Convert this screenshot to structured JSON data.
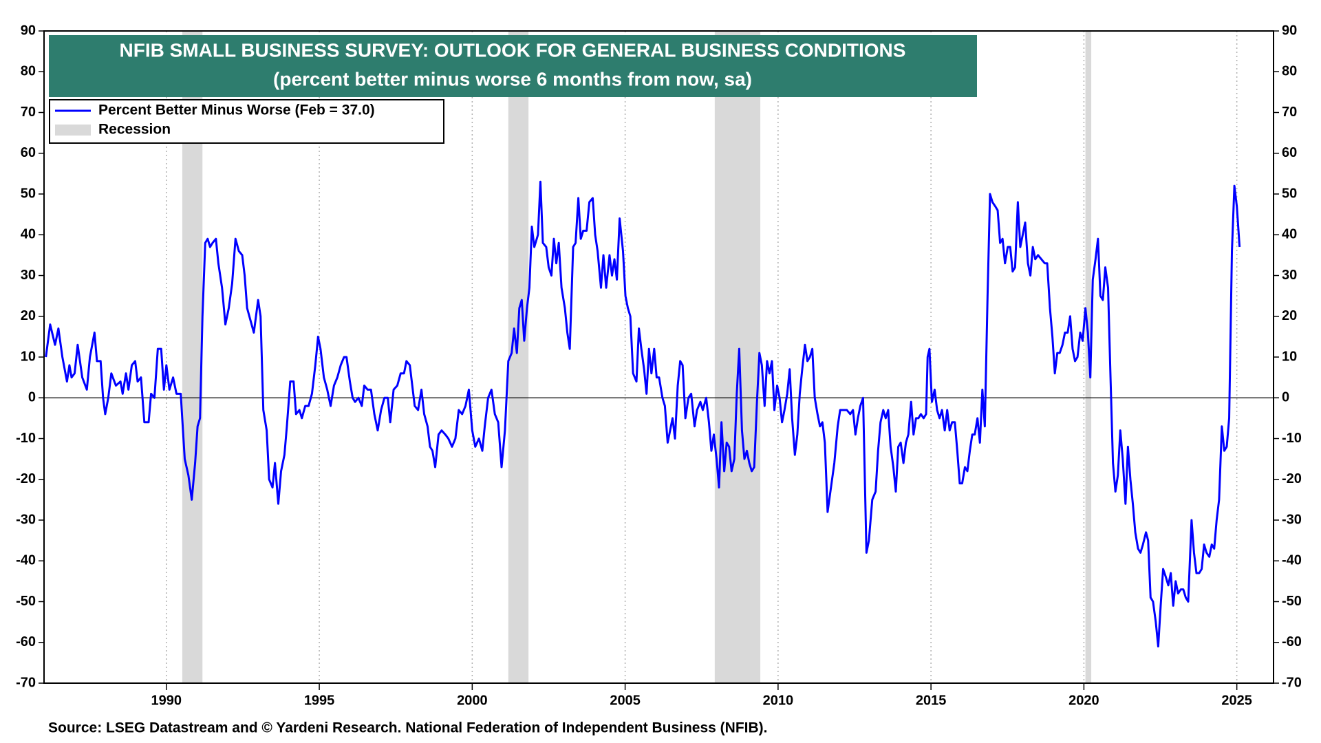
{
  "chart_data": {
    "type": "line",
    "title": "NFIB SMALL BUSINESS SURVEY: OUTLOOK FOR GENERAL BUSINESS CONDITIONS",
    "subtitle": "(percent better minus worse 6 months from now, sa)",
    "source": "Source: LSEG Datastream and © Yardeni Research. National Federation of Independent Business (NFIB).",
    "title_color": "#2e7d6e",
    "x": [
      1986.06,
      1986.2,
      1986.36,
      1986.47,
      1986.6,
      1986.75,
      1986.83,
      1986.9,
      1987.0,
      1987.1,
      1987.25,
      1987.4,
      1987.5,
      1987.65,
      1987.73,
      1987.85,
      1987.93,
      1988.0,
      1988.1,
      1988.2,
      1988.35,
      1988.5,
      1988.57,
      1988.68,
      1988.76,
      1988.87,
      1988.98,
      1989.06,
      1989.17,
      1989.28,
      1989.42,
      1989.5,
      1989.61,
      1989.72,
      1989.83,
      1989.92,
      1990.0,
      1990.1,
      1990.22,
      1990.33,
      1990.47,
      1990.6,
      1990.72,
      1990.83,
      1990.94,
      1991.02,
      1991.1,
      1991.18,
      1991.27,
      1991.35,
      1991.43,
      1991.51,
      1991.62,
      1991.7,
      1991.82,
      1991.93,
      1992.04,
      1992.15,
      1992.26,
      1992.37,
      1992.48,
      1992.56,
      1992.64,
      1992.75,
      1992.86,
      1993.0,
      1993.08,
      1993.17,
      1993.28,
      1993.36,
      1993.47,
      1993.55,
      1993.66,
      1993.75,
      1993.86,
      1993.94,
      1994.05,
      1994.16,
      1994.24,
      1994.35,
      1994.43,
      1994.54,
      1994.65,
      1994.76,
      1994.87,
      1994.96,
      1995.04,
      1995.15,
      1995.26,
      1995.37,
      1995.48,
      1995.59,
      1995.7,
      1995.81,
      1995.89,
      1996.0,
      1996.09,
      1996.17,
      1996.28,
      1996.39,
      1996.47,
      1996.58,
      1996.69,
      1996.8,
      1996.91,
      1997.02,
      1997.13,
      1997.24,
      1997.32,
      1997.43,
      1997.55,
      1997.66,
      1997.77,
      1997.85,
      1997.96,
      1998.04,
      1998.12,
      1998.23,
      1998.34,
      1998.43,
      1998.54,
      1998.62,
      1998.7,
      1998.79,
      1998.9,
      1999.0,
      1999.12,
      1999.22,
      1999.34,
      1999.45,
      1999.56,
      1999.67,
      1999.78,
      1999.89,
      2000.0,
      2000.1,
      2000.22,
      2000.33,
      2000.41,
      2000.52,
      2000.63,
      2000.74,
      2000.85,
      2000.96,
      2001.07,
      2001.18,
      2001.29,
      2001.37,
      2001.46,
      2001.54,
      2001.62,
      2001.7,
      2001.79,
      2001.87,
      2001.95,
      2002.03,
      2002.15,
      2002.23,
      2002.31,
      2002.42,
      2002.5,
      2002.59,
      2002.67,
      2002.75,
      2002.83,
      2002.92,
      2003.03,
      2003.11,
      2003.19,
      2003.3,
      2003.38,
      2003.47,
      2003.55,
      2003.63,
      2003.74,
      2003.83,
      2003.94,
      2004.02,
      2004.1,
      2004.21,
      2004.29,
      2004.38,
      2004.49,
      2004.57,
      2004.65,
      2004.73,
      2004.82,
      2004.93,
      2005.01,
      2005.09,
      2005.17,
      2005.26,
      2005.37,
      2005.45,
      2005.53,
      2005.62,
      2005.7,
      2005.78,
      2005.86,
      2005.95,
      2006.03,
      2006.11,
      2006.22,
      2006.3,
      2006.39,
      2006.47,
      2006.55,
      2006.63,
      2006.72,
      2006.8,
      2006.88,
      2006.97,
      2007.07,
      2007.16,
      2007.27,
      2007.35,
      2007.46,
      2007.54,
      2007.65,
      2007.74,
      2007.82,
      2007.9,
      2007.99,
      2008.07,
      2008.15,
      2008.24,
      2008.32,
      2008.4,
      2008.48,
      2008.57,
      2008.65,
      2008.73,
      2008.82,
      2008.9,
      2008.98,
      2009.06,
      2009.14,
      2009.22,
      2009.31,
      2009.39,
      2009.47,
      2009.56,
      2009.64,
      2009.72,
      2009.8,
      2009.88,
      2009.97,
      2010.05,
      2010.13,
      2010.21,
      2010.3,
      2010.38,
      2010.46,
      2010.55,
      2010.63,
      2010.71,
      2010.79,
      2010.88,
      2010.96,
      2011.04,
      2011.12,
      2011.2,
      2011.29,
      2011.37,
      2011.45,
      2011.53,
      2011.62,
      2011.73,
      2011.84,
      2011.95,
      2012.03,
      2012.14,
      2012.25,
      2012.36,
      2012.45,
      2012.53,
      2012.61,
      2012.69,
      2012.78,
      2012.89,
      2012.97,
      2013.08,
      2013.19,
      2013.27,
      2013.35,
      2013.44,
      2013.52,
      2013.6,
      2013.68,
      2013.77,
      2013.85,
      2013.93,
      2014.01,
      2014.1,
      2014.18,
      2014.26,
      2014.35,
      2014.43,
      2014.51,
      2014.59,
      2014.67,
      2014.76,
      2014.84,
      2014.89,
      2014.95,
      2015.03,
      2015.12,
      2015.2,
      2015.28,
      2015.36,
      2015.45,
      2015.53,
      2015.61,
      2015.69,
      2015.78,
      2015.86,
      2015.94,
      2016.02,
      2016.11,
      2016.19,
      2016.27,
      2016.35,
      2016.43,
      2016.52,
      2016.6,
      2016.68,
      2016.76,
      2016.85,
      2016.93,
      2017.01,
      2017.1,
      2017.18,
      2017.26,
      2017.34,
      2017.42,
      2017.51,
      2017.59,
      2017.67,
      2017.75,
      2017.84,
      2017.92,
      2018.0,
      2018.08,
      2018.17,
      2018.25,
      2018.33,
      2018.41,
      2018.5,
      2018.61,
      2018.72,
      2018.8,
      2018.89,
      2018.97,
      2019.05,
      2019.13,
      2019.21,
      2019.3,
      2019.38,
      2019.47,
      2019.55,
      2019.63,
      2019.71,
      2019.79,
      2019.88,
      2019.96,
      2020.05,
      2020.13,
      2020.21,
      2020.29,
      2020.38,
      2020.46,
      2020.54,
      2020.62,
      2020.7,
      2020.79,
      2020.87,
      2020.95,
      2021.03,
      2021.11,
      2021.19,
      2021.27,
      2021.36,
      2021.44,
      2021.52,
      2021.6,
      2021.68,
      2021.77,
      2021.85,
      2021.93,
      2022.03,
      2022.1,
      2022.18,
      2022.26,
      2022.35,
      2022.43,
      2022.51,
      2022.59,
      2022.68,
      2022.76,
      2022.84,
      2022.92,
      2023.0,
      2023.08,
      2023.17,
      2023.25,
      2023.33,
      2023.41,
      2023.52,
      2023.6,
      2023.68,
      2023.77,
      2023.85,
      2023.93,
      2024.01,
      2024.1,
      2024.18,
      2024.26,
      2024.34,
      2024.42,
      2024.51,
      2024.59,
      2024.67,
      2024.75,
      2024.84,
      2024.92,
      2025.0,
      2025.09
    ],
    "series": [
      {
        "name": "Percent Better Minus Worse (Feb = 37.0)",
        "color": "#0000ff",
        "values": [
          10,
          18,
          13,
          17,
          10,
          4,
          8,
          5,
          6,
          13,
          5,
          2,
          10,
          16,
          9,
          9,
          0,
          -4,
          0,
          6,
          3,
          4,
          1,
          6,
          2,
          8,
          9,
          4,
          5,
          -6,
          -6,
          1,
          0,
          12,
          12,
          2,
          8,
          2,
          5,
          1,
          1,
          -15,
          -19,
          -25,
          -16,
          -7,
          -5,
          20,
          38,
          39,
          37,
          38,
          39,
          33,
          27,
          18,
          22,
          28,
          39,
          36,
          35,
          30,
          22,
          19,
          16,
          24,
          20,
          -3,
          -8,
          -20,
          -22,
          -16,
          -26,
          -18,
          -14,
          -7,
          4,
          4,
          -4,
          -3,
          -5,
          -2,
          -2,
          1,
          8,
          15,
          12,
          5,
          2,
          -2,
          3,
          5,
          8,
          10,
          10,
          4,
          0,
          -1,
          0,
          -2,
          3,
          2,
          2,
          -4,
          -8,
          -3,
          0,
          0,
          -6,
          2,
          3,
          6,
          6,
          9,
          8,
          3,
          -2,
          -3,
          2,
          -4,
          -7,
          -12,
          -13,
          -17,
          -9,
          -8,
          -9,
          -10,
          -12,
          -10,
          -3,
          -4,
          -2,
          2,
          -8,
          -12,
          -10,
          -13,
          -7,
          0,
          2,
          -4,
          -6,
          -17,
          -8,
          9,
          11,
          17,
          11,
          22,
          24,
          14,
          22,
          27,
          42,
          37,
          40,
          53,
          38,
          37,
          32,
          30,
          39,
          33,
          38,
          27,
          22,
          16,
          12,
          37,
          38,
          49,
          39,
          41,
          41,
          48,
          49,
          40,
          36,
          27,
          35,
          27,
          35,
          30,
          34,
          29,
          44,
          36,
          25,
          22,
          20,
          6,
          4,
          17,
          12,
          7,
          1,
          12,
          6,
          12,
          5,
          5,
          0,
          -2,
          -11,
          -8,
          -5,
          -10,
          3,
          9,
          8,
          -5,
          0,
          1,
          -7,
          -3,
          -1,
          -3,
          0,
          -6,
          -13,
          -9,
          -15,
          -22,
          -6,
          -18,
          -11,
          -12,
          -18,
          -15,
          1,
          12,
          -8,
          -15,
          -13,
          -16,
          -18,
          -17,
          -1,
          11,
          8,
          -2,
          9,
          6,
          9,
          -3,
          3,
          0,
          -6,
          -3,
          1,
          7,
          -5,
          -14,
          -9,
          1,
          7,
          13,
          9,
          10,
          12,
          0,
          -4,
          -7,
          -6,
          -11,
          -28,
          -22,
          -16,
          -7,
          -3,
          -3,
          -3,
          -4,
          -3,
          -9,
          -5,
          -2,
          0,
          -38,
          -35,
          -25,
          -23,
          -13,
          -6,
          -3,
          -5,
          -3,
          -12,
          -17,
          -23,
          -12,
          -11,
          -16,
          -11,
          -9,
          -1,
          -9,
          -5,
          -5,
          -4,
          -5,
          -4,
          10,
          12,
          -1,
          2,
          -3,
          -5,
          -3,
          -8,
          -3,
          -8,
          -6,
          -6,
          -13,
          -21,
          -21,
          -17,
          -18,
          -13,
          -9,
          -9,
          -5,
          -11,
          2,
          -7,
          25,
          50,
          48,
          47,
          46,
          38,
          39,
          33,
          37,
          37,
          31,
          32,
          48,
          37,
          40,
          43,
          33,
          30,
          37,
          34,
          35,
          34,
          33,
          33,
          22,
          15,
          6,
          11,
          11,
          13,
          16,
          16,
          20,
          12,
          9,
          10,
          16,
          14,
          22,
          16,
          5,
          29,
          34,
          39,
          25,
          24,
          32,
          27,
          5,
          -16,
          -23,
          -19,
          -8,
          -15,
          -26,
          -12,
          -20,
          -26,
          -33,
          -37,
          -38,
          -36,
          -33,
          -35,
          -49,
          -50,
          -55,
          -61,
          -51,
          -42,
          -44,
          -46,
          -43,
          -51,
          -45,
          -48,
          -47,
          -47,
          -49,
          -50,
          -30,
          -38,
          -43,
          -43,
          -42,
          -36,
          -38,
          -39,
          -36,
          -37,
          -30,
          -25,
          -7,
          -13,
          -12,
          -5,
          36,
          52,
          47,
          37
        ]
      }
    ],
    "recessions": {
      "name": "Recession",
      "color": "#d9d9d9",
      "periods": [
        [
          1990.52,
          1991.18
        ],
        [
          2001.18,
          2001.84
        ],
        [
          2007.93,
          2009.42
        ],
        [
          2020.05,
          2020.24
        ]
      ]
    },
    "xlim": [
      1986,
      2026.2
    ],
    "ylim": [
      -70,
      90
    ],
    "y2lim": [
      -70,
      90
    ],
    "xticks": [
      1990,
      1995,
      2000,
      2005,
      2010,
      2015,
      2020,
      2025
    ],
    "yticks": [
      -70,
      -60,
      -50,
      -40,
      -30,
      -20,
      -10,
      0,
      10,
      20,
      30,
      40,
      50,
      60,
      70,
      80,
      90
    ],
    "y2ticks": [
      -70,
      -60,
      -50,
      -40,
      -30,
      -20,
      -10,
      0,
      10,
      20,
      30,
      40,
      50,
      60,
      70,
      80,
      90
    ],
    "xgrid": true,
    "zero_line": true
  }
}
